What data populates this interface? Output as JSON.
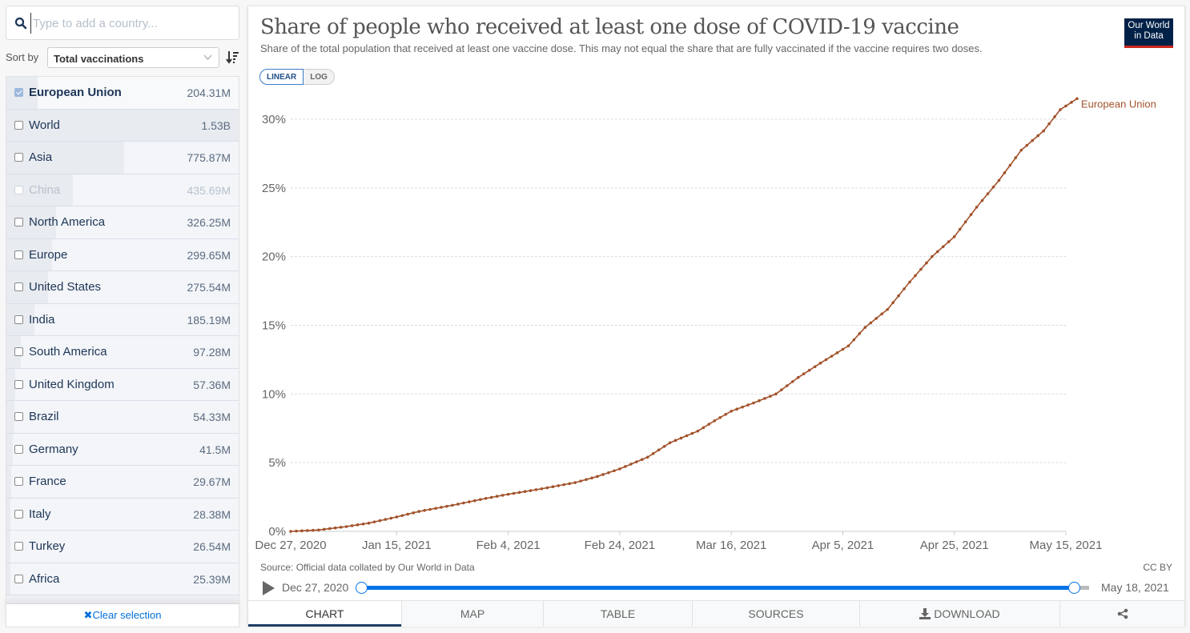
{
  "search": {
    "placeholder": "Type to add a country..."
  },
  "sort": {
    "label": "Sort by",
    "selected": "Total vaccinations"
  },
  "entities": [
    {
      "name": "European Union",
      "value": "204.31M",
      "raw": 204.31,
      "selected": true,
      "dim": false
    },
    {
      "name": "World",
      "value": "1.53B",
      "raw": 1530,
      "selected": false,
      "dim": false
    },
    {
      "name": "Asia",
      "value": "775.87M",
      "raw": 775.87,
      "selected": false,
      "dim": false
    },
    {
      "name": "China",
      "value": "435.69M",
      "raw": 435.69,
      "selected": false,
      "dim": true
    },
    {
      "name": "North America",
      "value": "326.25M",
      "raw": 326.25,
      "selected": false,
      "dim": false
    },
    {
      "name": "Europe",
      "value": "299.65M",
      "raw": 299.65,
      "selected": false,
      "dim": false
    },
    {
      "name": "United States",
      "value": "275.54M",
      "raw": 275.54,
      "selected": false,
      "dim": false
    },
    {
      "name": "India",
      "value": "185.19M",
      "raw": 185.19,
      "selected": false,
      "dim": false
    },
    {
      "name": "South America",
      "value": "97.28M",
      "raw": 97.28,
      "selected": false,
      "dim": false
    },
    {
      "name": "United Kingdom",
      "value": "57.36M",
      "raw": 57.36,
      "selected": false,
      "dim": false
    },
    {
      "name": "Brazil",
      "value": "54.33M",
      "raw": 54.33,
      "selected": false,
      "dim": false
    },
    {
      "name": "Germany",
      "value": "41.5M",
      "raw": 41.5,
      "selected": false,
      "dim": false
    },
    {
      "name": "France",
      "value": "29.67M",
      "raw": 29.67,
      "selected": false,
      "dim": false
    },
    {
      "name": "Italy",
      "value": "28.38M",
      "raw": 28.38,
      "selected": false,
      "dim": false
    },
    {
      "name": "Turkey",
      "value": "26.54M",
      "raw": 26.54,
      "selected": false,
      "dim": false
    },
    {
      "name": "Africa",
      "value": "25.39M",
      "raw": 25.39,
      "selected": false,
      "dim": false
    }
  ],
  "clear_label": "Clear selection",
  "header": {
    "title": "Share of people who received at least one dose of COVID-19 vaccine",
    "subtitle": "Share of the total population that received at least one vaccine dose. This may not equal the share that are fully vaccinated if the vaccine requires two doses.",
    "logo_line1": "Our World",
    "logo_line2": "in Data"
  },
  "scale_toggle": {
    "linear": "LINEAR",
    "log": "LOG",
    "active": "linear"
  },
  "footer": {
    "source": "Source: Official data collated by Our World in Data",
    "license": "CC BY"
  },
  "timeline": {
    "start": "Dec 27, 2020",
    "end": "May 18, 2021",
    "start_fraction": 0,
    "end_fraction": 1
  },
  "tabs": [
    {
      "label": "CHART",
      "active": true
    },
    {
      "label": "MAP",
      "active": false
    },
    {
      "label": "TABLE",
      "active": false
    },
    {
      "label": "SOURCES",
      "active": false
    },
    {
      "label": "DOWNLOAD",
      "active": false
    },
    {
      "label": "",
      "active": false
    }
  ],
  "colors": {
    "series": "#a2522b",
    "accent": "#0073e6",
    "logo_bg": "#002147",
    "logo_bar": "#ce261e"
  },
  "chart_data": {
    "type": "line",
    "title": "Share of people who received at least one dose of COVID-19 vaccine",
    "xlabel": "",
    "ylabel": "",
    "x_tick_labels": [
      "Dec 27, 2020",
      "Jan 15, 2021",
      "Feb 4, 2021",
      "Feb 24, 2021",
      "Mar 16, 2021",
      "Apr 5, 2021",
      "Apr 25, 2021",
      "May 15, 2021"
    ],
    "x_tick_days": [
      0,
      19,
      39,
      59,
      79,
      99,
      119,
      139
    ],
    "y_ticks": [
      0,
      5,
      10,
      15,
      20,
      25,
      30
    ],
    "y_tick_labels": [
      "0%",
      "5%",
      "10%",
      "15%",
      "20%",
      "25%",
      "30%"
    ],
    "ylim": [
      0,
      31.5
    ],
    "xlim_days": [
      0,
      141
    ],
    "grid": true,
    "legend": "inline-end-label",
    "series": [
      {
        "name": "European Union",
        "x_days": [
          0,
          5,
          10,
          14,
          19,
          23,
          29,
          35,
          39,
          45,
          51,
          55,
          59,
          64,
          68,
          73,
          76,
          79,
          83,
          87,
          91,
          95,
          98,
          100,
          103,
          107,
          111,
          115,
          119,
          123,
          127,
          131,
          135,
          138,
          141
        ],
        "values": [
          0,
          0.1,
          0.35,
          0.6,
          1.05,
          1.45,
          1.9,
          2.4,
          2.7,
          3.1,
          3.55,
          4.0,
          4.55,
          5.4,
          6.45,
          7.3,
          8.05,
          8.75,
          9.35,
          10.0,
          11.2,
          12.25,
          13.0,
          13.5,
          14.85,
          16.15,
          18.15,
          20.0,
          21.45,
          23.6,
          25.55,
          27.75,
          29.15,
          30.7,
          31.5
        ]
      }
    ]
  }
}
